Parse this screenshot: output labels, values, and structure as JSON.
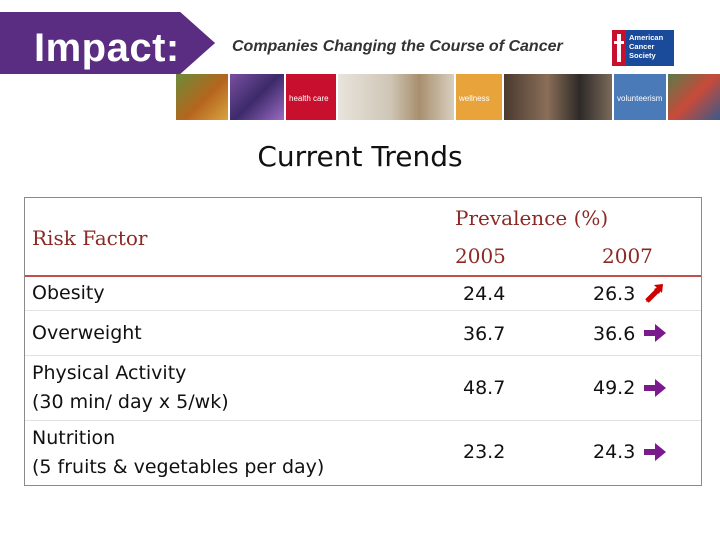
{
  "header": {
    "brand": "Impact:",
    "tagline": "Companies Changing the Course of Cancer",
    "logo_text": "American Cancer Society",
    "tiles": [
      "health care",
      "wellness",
      "volunteerism"
    ]
  },
  "title": "Current Trends",
  "table": {
    "risk_header": "Risk Factor",
    "prevalence_header": "Prevalence (%)",
    "year1": "2005",
    "year2": "2007",
    "rows": [
      {
        "label_line1": "Obesity",
        "label_line2": "",
        "v2005": "24.4",
        "v2007": "26.3",
        "trend": "up",
        "arrow_color": "#cc0000"
      },
      {
        "label_line1": "Overweight",
        "label_line2": "",
        "v2005": "36.7",
        "v2007": "36.6",
        "trend": "flat",
        "arrow_color": "#7a1a8c"
      },
      {
        "label_line1": "Physical Activity",
        "label_line2": "(30 min/ day x 5/wk)",
        "v2005": "48.7",
        "v2007": "49.2",
        "trend": "flat",
        "arrow_color": "#7a1a8c"
      },
      {
        "label_line1": "Nutrition",
        "label_line2": "(5 fruits & vegetables per day)",
        "v2005": "23.2",
        "v2007": "24.3",
        "trend": "flat",
        "arrow_color": "#7a1a8c"
      }
    ]
  },
  "colors": {
    "brand_purple": "#5a2d82",
    "header_text": "#8b2a24",
    "header_rule": "#c0504d"
  }
}
